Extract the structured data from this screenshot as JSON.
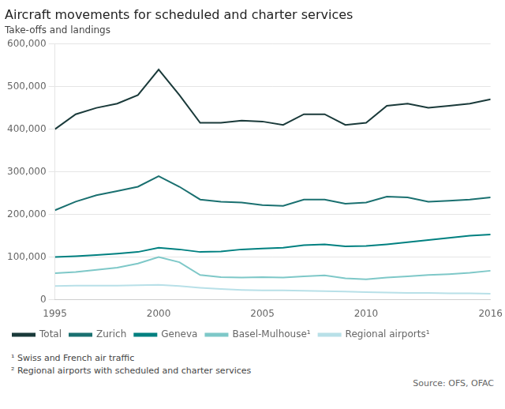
{
  "chart_data": {
    "type": "line",
    "title": "Aircraft movements for scheduled and charter services",
    "subtitle": "Take-offs and landings",
    "annotations": [
      "¹ Swiss and French air traffic",
      "² Regional airports with scheduled and charter services",
      "Source: OFS, OFAC"
    ],
    "x": [
      1995,
      1996,
      1997,
      1998,
      1999,
      2000,
      2001,
      2002,
      2003,
      2004,
      2005,
      2006,
      2007,
      2008,
      2009,
      2010,
      2011,
      2012,
      2013,
      2014,
      2015,
      2016
    ],
    "series": [
      {
        "name": "Total",
        "color": "#1a3a3a",
        "values": [
          400000,
          435000,
          450000,
          460000,
          480000,
          540000,
          480000,
          415000,
          415000,
          420000,
          418000,
          410000,
          435000,
          435000,
          410000,
          415000,
          455000,
          460000,
          450000,
          455000,
          460000,
          470000
        ]
      },
      {
        "name": "Zurich",
        "color": "#1a7070",
        "values": [
          210000,
          230000,
          245000,
          255000,
          265000,
          290000,
          265000,
          235000,
          230000,
          228000,
          222000,
          220000,
          235000,
          235000,
          225000,
          228000,
          242000,
          240000,
          230000,
          232000,
          235000,
          240000
        ]
      },
      {
        "name": "Geneva",
        "color": "#008080",
        "values": [
          100000,
          102000,
          105000,
          108000,
          112000,
          122000,
          118000,
          112000,
          113000,
          118000,
          120000,
          122000,
          128000,
          130000,
          125000,
          126000,
          130000,
          135000,
          140000,
          145000,
          150000,
          153000
        ]
      },
      {
        "name": "Basel-Mulhouse¹",
        "color": "#7ec8c8",
        "values": [
          62000,
          65000,
          70000,
          75000,
          85000,
          100000,
          88000,
          58000,
          53000,
          52000,
          53000,
          52000,
          55000,
          57000,
          50000,
          48000,
          52000,
          55000,
          58000,
          60000,
          63000,
          68000
        ]
      },
      {
        "name": "Regional airports¹",
        "color": "#b8e0e8",
        "values": [
          32000,
          33000,
          33000,
          33000,
          34000,
          35000,
          32000,
          28000,
          25000,
          23000,
          22000,
          22000,
          21000,
          20000,
          19000,
          18000,
          17000,
          16000,
          16000,
          15000,
          15000,
          14000
        ]
      }
    ],
    "xlim": [
      1995,
      2016
    ],
    "xticks": [
      1995,
      2000,
      2005,
      2010,
      2016
    ],
    "ylim": [
      0,
      600000
    ],
    "yticks": [
      0,
      {
        "value": 100000,
        "label": "100,000"
      },
      {
        "value": 200000,
        "label": "200,000"
      },
      {
        "value": 300000,
        "label": "300,000"
      },
      {
        "value": 400000,
        "label": "400,000"
      },
      {
        "value": 500000,
        "label": "500,000"
      },
      {
        "value": 600000,
        "label": "600,000"
      }
    ],
    "grid": true,
    "legend": "bottom"
  }
}
